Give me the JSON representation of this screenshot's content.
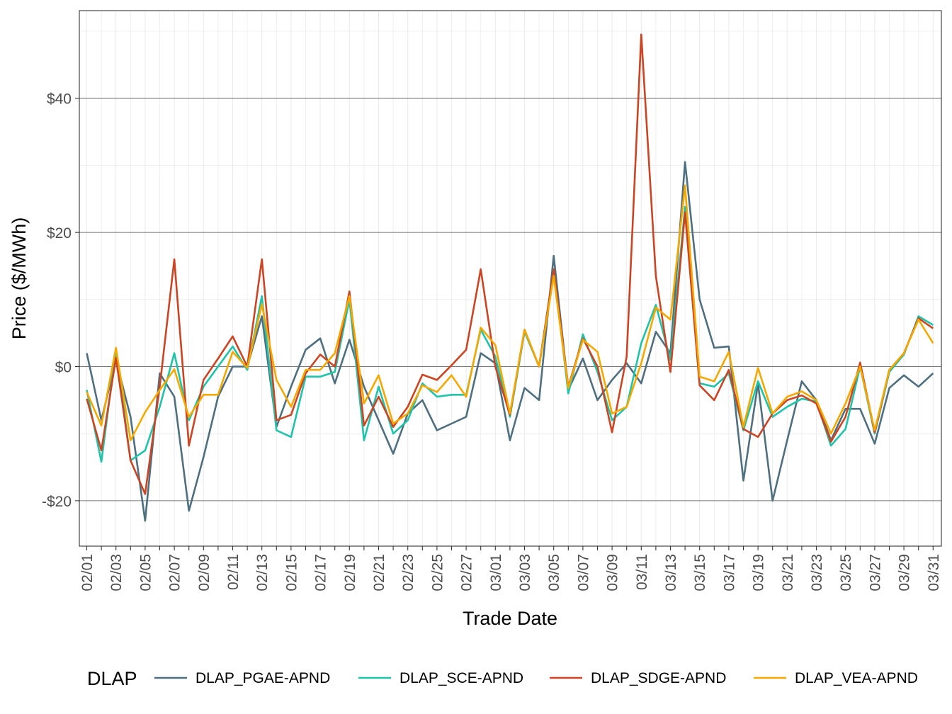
{
  "chart_data": {
    "type": "line",
    "title": "",
    "xlabel": "Trade Date",
    "ylabel": "Price ($/MWh)",
    "ylim": [
      -26.5,
      53
    ],
    "y_ticks": [
      {
        "value": -20,
        "label": "-$20"
      },
      {
        "value": 0,
        "label": "$0"
      },
      {
        "value": 20,
        "label": "$20"
      },
      {
        "value": 40,
        "label": "$40"
      }
    ],
    "x": [
      "02/01",
      "02/02",
      "02/03",
      "02/04",
      "02/05",
      "02/06",
      "02/07",
      "02/08",
      "02/09",
      "02/10",
      "02/11",
      "02/12",
      "02/13",
      "02/14",
      "02/15",
      "02/16",
      "02/17",
      "02/18",
      "02/19",
      "02/20",
      "02/21",
      "02/22",
      "02/23",
      "02/24",
      "02/25",
      "02/26",
      "02/27",
      "02/28",
      "03/01",
      "03/02",
      "03/03",
      "03/04",
      "03/05",
      "03/06",
      "03/07",
      "03/08",
      "03/09",
      "03/10",
      "03/11",
      "03/12",
      "03/13",
      "03/14",
      "03/15",
      "03/16",
      "03/17",
      "03/18",
      "03/19",
      "03/20",
      "03/21",
      "03/22",
      "03/23",
      "03/24",
      "03/25",
      "03/26",
      "03/27",
      "03/28",
      "03/29",
      "03/30",
      "03/31"
    ],
    "x_tick_labels": [
      "02/01",
      "02/03",
      "02/05",
      "02/07",
      "02/09",
      "02/11",
      "02/13",
      "02/15",
      "02/17",
      "02/19",
      "02/21",
      "02/23",
      "02/25",
      "02/27",
      "03/01",
      "03/03",
      "03/05",
      "03/07",
      "03/09",
      "03/11",
      "03/13",
      "03/15",
      "03/17",
      "03/19",
      "03/21",
      "03/23",
      "03/25",
      "03/27",
      "03/29",
      "03/31"
    ],
    "legend": {
      "title": "DLAP",
      "position": "bottom"
    },
    "grid": true,
    "series": [
      {
        "name": "DLAP_PGAE-APND",
        "color": "#4d6f80",
        "values": [
          2,
          -8,
          1,
          -7.5,
          -23,
          -1,
          -4.5,
          -21.5,
          -13.5,
          -4.5,
          0,
          0,
          7.5,
          -9,
          -3,
          2.5,
          4.2,
          -2.5,
          4,
          -3,
          -8,
          -13,
          -7,
          -5,
          -9.5,
          -8.5,
          -7.5,
          2,
          0.5,
          -11,
          -3.2,
          -5,
          16.5,
          -3.5,
          1.2,
          -5,
          -2,
          0.5,
          -2.5,
          5.2,
          2,
          30.5,
          10,
          2.8,
          3,
          -17,
          -2.5,
          -20,
          -11,
          -2.2,
          -5,
          -11,
          -6.3,
          -6.3,
          -11.5,
          -3.2,
          -1.3,
          -3,
          -1
        ]
      },
      {
        "name": "DLAP_SCE-APND",
        "color": "#1fc3aa",
        "values": [
          -3.5,
          -14.2,
          2.5,
          -14,
          -12.5,
          -6,
          2,
          -8,
          -3,
          0,
          3,
          -0.5,
          10.5,
          -9.5,
          -10.5,
          -1.5,
          -1.5,
          -0.8,
          10,
          -11,
          -3,
          -10,
          -8,
          -2.5,
          -4.5,
          -4.2,
          -4.2,
          5.5,
          1.5,
          -7.5,
          5.2,
          0,
          14.5,
          -4,
          4.8,
          -0.8,
          -8,
          -6,
          3.5,
          9.2,
          1,
          23.8,
          -2.5,
          -3,
          -1,
          -9.5,
          -2.2,
          -7.5,
          -6,
          -4.8,
          -5.2,
          -11.8,
          -9.3,
          0,
          -10,
          -0.8,
          1.8,
          7.5,
          6.2
        ]
      },
      {
        "name": "DLAP_SDGE-APND",
        "color": "#cc4422",
        "values": [
          -4.8,
          -12.5,
          1.3,
          -14,
          -19,
          -3,
          16,
          -11.8,
          -2,
          1.2,
          4.5,
          0,
          16,
          -8,
          -7.2,
          -1,
          1.8,
          0,
          11.2,
          -8.8,
          -4.5,
          -9,
          -6,
          -1.2,
          -2,
          0.2,
          2.5,
          14.5,
          0,
          -7.2,
          5.5,
          0,
          14.5,
          -3,
          4.2,
          0,
          -9.8,
          1.5,
          49.5,
          13.5,
          -0.8,
          23,
          -2.8,
          -5,
          -0.5,
          -9.3,
          -10.5,
          -7,
          -5,
          -4.3,
          -5.5,
          -11.2,
          -7.5,
          0.6,
          -9.8,
          -0.5,
          2,
          7.2,
          5.7
        ]
      },
      {
        "name": "DLAP_VEA-APND",
        "color": "#f5a800",
        "values": [
          -3.8,
          -8.8,
          2.8,
          -11,
          -6.8,
          -3.5,
          -0.4,
          -7.5,
          -4.2,
          -4.2,
          2.2,
          -0.2,
          9.3,
          -2,
          -6,
          -0.5,
          -0.5,
          2,
          10.5,
          -5.5,
          -1.3,
          -8.5,
          -7,
          -2.8,
          -3.8,
          -1.3,
          -4.5,
          5.8,
          3.2,
          -7,
          5.5,
          0,
          13.5,
          -3.2,
          4,
          2.2,
          -7,
          -6,
          0.5,
          8.8,
          7,
          27,
          -1.5,
          -2.2,
          2.2,
          -9,
          -0.2,
          -7,
          -4.5,
          -3.7,
          -5,
          -10,
          -5.5,
          0,
          -9.5,
          -0.5,
          2,
          7,
          3.5
        ]
      }
    ]
  }
}
